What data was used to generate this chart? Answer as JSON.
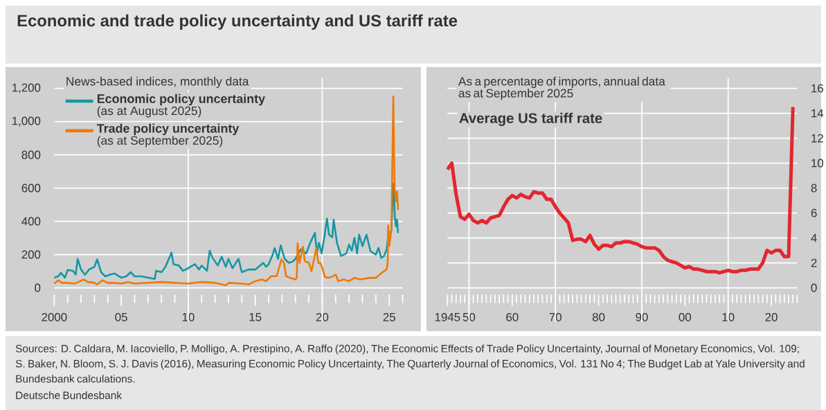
{
  "chart_data": [
    {
      "type": "line",
      "title": "Economic and trade policy uncertainty and US tariff rate",
      "subtitle": "News-based indices, monthly data",
      "annotations": [
        "(as at August 2025)",
        "(as at September 2025)",
        "Sources: D. Caldara, M. Iacoviello, P. Molligo, A. Prestipino, A. Raffo (2020), The Economic Effects of Trade Policy Uncertainty, Journal of Monetary Economics, Vol. 109; S. Baker, N. Bloom, S. J. Davis (2016), Measuring Economic Policy Uncertainty, The Quarterly Journal of Economics, Vol. 131 No 4; The Budget Lab at Yale University and Bundesbank calculations.",
        "Deutsche Bundesbank"
      ],
      "series": [
        {
          "name": "Economic policy uncertainty",
          "color": "#1397a5",
          "x": [
            2000.0,
            2000.3,
            2000.5,
            2000.8,
            2001.0,
            2001.4,
            2001.6,
            2001.75,
            2002.0,
            2002.3,
            2002.6,
            2003.0,
            2003.2,
            2003.5,
            2003.8,
            2004.2,
            2004.5,
            2004.8,
            2005.0,
            2005.4,
            2005.7,
            2006.0,
            2006.5,
            2007.0,
            2007.5,
            2007.6,
            2008.0,
            2008.3,
            2008.75,
            2008.9,
            2009.3,
            2009.6,
            2010.0,
            2010.5,
            2010.8,
            2011.0,
            2011.4,
            2011.6,
            2011.8,
            2012.2,
            2012.5,
            2012.8,
            2013.0,
            2013.3,
            2013.75,
            2014.0,
            2014.5,
            2015.0,
            2015.6,
            2015.8,
            2016.0,
            2016.3,
            2016.45,
            2016.7,
            2016.9,
            2017.2,
            2017.5,
            2017.8,
            2018.0,
            2018.4,
            2018.8,
            2019.1,
            2019.45,
            2019.6,
            2019.75,
            2019.95,
            2020.15,
            2020.35,
            2020.5,
            2020.75,
            2020.85,
            2021.1,
            2021.4,
            2021.8,
            2022.0,
            2022.2,
            2022.4,
            2022.6,
            2022.75,
            2023.0,
            2023.3,
            2023.6,
            2024.0,
            2024.2,
            2024.4,
            2024.6,
            2024.8,
            2024.95,
            2025.15,
            2025.32,
            2025.42,
            2025.5,
            2025.58,
            2025.65
          ],
          "values": [
            61,
            69,
            90,
            61,
            107,
            102,
            80,
            174,
            110,
            78,
            110,
            126,
            171,
            94,
            69,
            80,
            86,
            70,
            61,
            70,
            94,
            69,
            69,
            61,
            53,
            102,
            94,
            126,
            212,
            142,
            134,
            102,
            118,
            142,
            110,
            134,
            102,
            223,
            182,
            134,
            187,
            126,
            174,
            118,
            174,
            94,
            110,
            110,
            150,
            126,
            142,
            199,
            239,
            174,
            255,
            174,
            150,
            158,
            174,
            231,
            207,
            270,
            330,
            207,
            271,
            207,
            300,
            417,
            320,
            304,
            409,
            271,
            191,
            207,
            260,
            223,
            300,
            207,
            320,
            250,
            320,
            220,
            200,
            240,
            180,
            190,
            230,
            330,
            340,
            630,
            420,
            370,
            410,
            330
          ]
        },
        {
          "name": "Trade policy uncertainty",
          "color": "#ec7a08",
          "x": [
            2000.0,
            2000.3,
            2000.6,
            2001.0,
            2001.5,
            2001.8,
            2002.2,
            2002.5,
            2003.0,
            2003.2,
            2003.6,
            2004.0,
            2004.5,
            2005.0,
            2005.5,
            2006.0,
            2007.0,
            2008.0,
            2009.0,
            2010.0,
            2011.0,
            2012.0,
            2012.8,
            2013.0,
            2014.0,
            2014.5,
            2015.0,
            2015.5,
            2015.8,
            2016.2,
            2016.6,
            2016.95,
            2017.15,
            2017.3,
            2017.6,
            2018.0,
            2018.1,
            2018.16,
            2018.3,
            2018.56,
            2018.7,
            2019.0,
            2019.2,
            2019.56,
            2019.7,
            2019.85,
            2020.0,
            2020.2,
            2020.5,
            2020.8,
            2021.0,
            2021.2,
            2021.6,
            2022.0,
            2022.4,
            2022.8,
            2023.2,
            2023.6,
            2024.0,
            2024.3,
            2024.6,
            2024.8,
            2024.88,
            2024.92,
            2025.0,
            2025.16,
            2025.3,
            2025.4,
            2025.5,
            2025.58,
            2025.66
          ],
          "values": [
            25,
            45,
            30,
            30,
            25,
            35,
            50,
            35,
            30,
            20,
            45,
            30,
            30,
            25,
            35,
            25,
            30,
            35,
            30,
            25,
            35,
            30,
            15,
            30,
            25,
            20,
            40,
            50,
            40,
            70,
            70,
            170,
            150,
            70,
            60,
            50,
            60,
            268,
            150,
            247,
            160,
            150,
            100,
            239,
            150,
            150,
            120,
            65,
            60,
            70,
            80,
            40,
            50,
            40,
            60,
            50,
            55,
            60,
            60,
            80,
            100,
            110,
            150,
            376,
            250,
            350,
            1151,
            600,
            520,
            580,
            470
          ]
        }
      ],
      "xlim": [
        2000,
        2026
      ],
      "xticks": [
        {
          "value": 2001,
          "label": null
        },
        {
          "value": 2002,
          "label": null
        },
        {
          "value": 2003,
          "label": null
        },
        {
          "value": 2004,
          "label": null
        },
        {
          "value": 2006,
          "label": null
        },
        {
          "value": 2007,
          "label": null
        },
        {
          "value": 2008,
          "label": null
        },
        {
          "value": 2009,
          "label": null
        },
        {
          "value": 2011,
          "label": null
        },
        {
          "value": 2012,
          "label": null
        },
        {
          "value": 2013,
          "label": null
        },
        {
          "value": 2014,
          "label": null
        },
        {
          "value": 2016,
          "label": null
        },
        {
          "value": 2017,
          "label": null
        },
        {
          "value": 2018,
          "label": null
        },
        {
          "value": 2019,
          "label": null
        },
        {
          "value": 2021,
          "label": null
        },
        {
          "value": 2022,
          "label": null
        },
        {
          "value": 2023,
          "label": null
        },
        {
          "value": 2024,
          "label": null
        },
        {
          "value": 2026,
          "label": null
        },
        {
          "value": 2000,
          "label": "2000"
        },
        {
          "value": 2005,
          "label": "05"
        },
        {
          "value": 2010,
          "label": "10"
        },
        {
          "value": 2015,
          "label": "15"
        },
        {
          "value": 2020,
          "label": "20"
        },
        {
          "value": 2025,
          "label": "25"
        }
      ],
      "ylim": [
        0,
        1200
      ],
      "yticks": [
        0,
        200,
        400,
        600,
        800,
        {
          "value": 1000,
          "label": "1,000"
        },
        {
          "value": 1200,
          "label": "1,200"
        }
      ],
      "grid": "y",
      "legend": "top left",
      "ref_lines": [
        {
          "axis": "x",
          "value": 2010,
          "color": "#ffffff"
        },
        {
          "axis": "x",
          "value": 2020,
          "color": "#ffffff"
        }
      ]
    },
    {
      "type": "line",
      "title": "Average US tariff rate",
      "subtitle": "As a percentage of imports, annual data as at September 2025",
      "x": [
        1945,
        1946,
        1947,
        1948,
        1949,
        1950,
        1951,
        1952,
        1953,
        1954,
        1955,
        1956,
        1957,
        1958,
        1959,
        1960,
        1961,
        1962,
        1963,
        1964,
        1965,
        1966,
        1967,
        1968,
        1969,
        1970,
        1971,
        1972,
        1973,
        1974,
        1975,
        1976,
        1977,
        1978,
        1979,
        1980,
        1981,
        1982,
        1983,
        1984,
        1985,
        1986,
        1987,
        1988,
        1989,
        1990,
        1991,
        1992,
        1993,
        1994,
        1995,
        1996,
        1997,
        1998,
        1999,
        2000,
        2001,
        2002,
        2003,
        2004,
        2005,
        2006,
        2007,
        2008,
        2009,
        2010,
        2011,
        2012,
        2013,
        2014,
        2015,
        2016,
        2017,
        2018,
        2019,
        2020,
        2021,
        2022,
        2023,
        2024,
        2025
      ],
      "series": [
        {
          "color": "#e3262f",
          "axis": "y2",
          "values": [
            9.5,
            10.0,
            7.5,
            5.7,
            5.5,
            5.9,
            5.4,
            5.2,
            5.4,
            5.2,
            5.6,
            5.7,
            5.8,
            6.5,
            7.1,
            7.4,
            7.2,
            7.5,
            7.3,
            7.2,
            7.7,
            7.6,
            7.6,
            7.1,
            7.1,
            6.5,
            6.0,
            5.6,
            5.2,
            3.8,
            3.9,
            3.9,
            3.7,
            4.2,
            3.5,
            3.1,
            3.4,
            3.4,
            3.3,
            3.6,
            3.6,
            3.7,
            3.7,
            3.6,
            3.5,
            3.3,
            3.2,
            3.2,
            3.2,
            3.0,
            2.5,
            2.2,
            2.1,
            2.0,
            1.8,
            1.6,
            1.7,
            1.5,
            1.5,
            1.4,
            1.3,
            1.3,
            1.3,
            1.2,
            1.3,
            1.4,
            1.3,
            1.3,
            1.4,
            1.4,
            1.5,
            1.5,
            1.5,
            2.0,
            3.0,
            2.8,
            3.0,
            3.0,
            2.5,
            2.5,
            14.5
          ]
        }
      ],
      "xlim": [
        1945,
        2026
      ],
      "xticks": [
        {
          "value": 1946,
          "label": null
        },
        {
          "value": 1947,
          "label": null
        },
        {
          "value": 1948,
          "label": null
        },
        {
          "value": 1949,
          "label": null
        },
        {
          "value": 1951,
          "label": null
        },
        {
          "value": 1952,
          "label": null
        },
        {
          "value": 1953,
          "label": null
        },
        {
          "value": 1954,
          "label": null
        },
        {
          "value": 1955,
          "label": null
        },
        {
          "value": 1956,
          "label": null
        },
        {
          "value": 1957,
          "label": null
        },
        {
          "value": 1958,
          "label": null
        },
        {
          "value": 1959,
          "label": null
        },
        {
          "value": 1961,
          "label": null
        },
        {
          "value": 1962,
          "label": null
        },
        {
          "value": 1963,
          "label": null
        },
        {
          "value": 1964,
          "label": null
        },
        {
          "value": 1965,
          "label": null
        },
        {
          "value": 1966,
          "label": null
        },
        {
          "value": 1967,
          "label": null
        },
        {
          "value": 1968,
          "label": null
        },
        {
          "value": 1969,
          "label": null
        },
        {
          "value": 1971,
          "label": null
        },
        {
          "value": 1972,
          "label": null
        },
        {
          "value": 1973,
          "label": null
        },
        {
          "value": 1974,
          "label": null
        },
        {
          "value": 1975,
          "label": null
        },
        {
          "value": 1976,
          "label": null
        },
        {
          "value": 1977,
          "label": null
        },
        {
          "value": 1978,
          "label": null
        },
        {
          "value": 1979,
          "label": null
        },
        {
          "value": 1981,
          "label": null
        },
        {
          "value": 1982,
          "label": null
        },
        {
          "value": 1983,
          "label": null
        },
        {
          "value": 1984,
          "label": null
        },
        {
          "value": 1985,
          "label": null
        },
        {
          "value": 1986,
          "label": null
        },
        {
          "value": 1987,
          "label": null
        },
        {
          "value": 1988,
          "label": null
        },
        {
          "value": 1989,
          "label": null
        },
        {
          "value": 1991,
          "label": null
        },
        {
          "value": 1992,
          "label": null
        },
        {
          "value": 1993,
          "label": null
        },
        {
          "value": 1994,
          "label": null
        },
        {
          "value": 1995,
          "label": null
        },
        {
          "value": 1996,
          "label": null
        },
        {
          "value": 1997,
          "label": null
        },
        {
          "value": 1998,
          "label": null
        },
        {
          "value": 1999,
          "label": null
        },
        {
          "value": 2001,
          "label": null
        },
        {
          "value": 2002,
          "label": null
        },
        {
          "value": 2003,
          "label": null
        },
        {
          "value": 2004,
          "label": null
        },
        {
          "value": 2005,
          "label": null
        },
        {
          "value": 2006,
          "label": null
        },
        {
          "value": 2007,
          "label": null
        },
        {
          "value": 2008,
          "label": null
        },
        {
          "value": 2009,
          "label": null
        },
        {
          "value": 2011,
          "label": null
        },
        {
          "value": 2012,
          "label": null
        },
        {
          "value": 2013,
          "label": null
        },
        {
          "value": 2014,
          "label": null
        },
        {
          "value": 2015,
          "label": null
        },
        {
          "value": 2016,
          "label": null
        },
        {
          "value": 2017,
          "label": null
        },
        {
          "value": 2018,
          "label": null
        },
        {
          "value": 2019,
          "label": null
        },
        {
          "value": 2021,
          "label": null
        },
        {
          "value": 2022,
          "label": null
        },
        {
          "value": 2023,
          "label": null
        },
        {
          "value": 2024,
          "label": null
        },
        {
          "value": 2025,
          "label": null
        },
        {
          "value": 2026,
          "label": null
        },
        {
          "value": 1945,
          "label": "1945"
        },
        {
          "value": 1950,
          "label": "50"
        },
        {
          "value": 1960,
          "label": "60"
        },
        {
          "value": 1970,
          "label": "70"
        },
        {
          "value": 1980,
          "label": "80"
        },
        {
          "value": 1990,
          "label": "90"
        },
        {
          "value": 2000,
          "label": "00"
        },
        {
          "value": 2010,
          "label": "10"
        },
        {
          "value": 2020,
          "label": "20"
        }
      ],
      "y2lim": [
        0,
        16
      ],
      "y2ticks": [
        0,
        2,
        4,
        6,
        8,
        10,
        12,
        14,
        16
      ],
      "grid": "y",
      "ref_lines": [
        {
          "axis": "x",
          "value": 1950,
          "color": "#ffffff"
        },
        {
          "axis": "x",
          "value": 1970,
          "color": "#ffffff"
        },
        {
          "axis": "x",
          "value": 1990,
          "color": "#ffffff"
        },
        {
          "axis": "x",
          "value": 2010,
          "color": "#ffffff"
        }
      ]
    }
  ]
}
